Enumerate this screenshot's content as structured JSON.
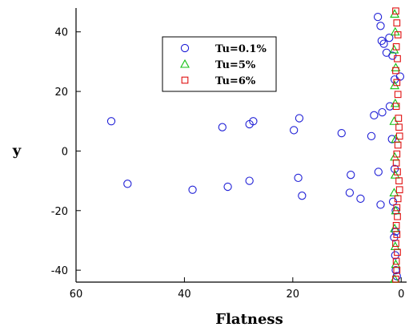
{
  "chart_data": {
    "type": "scatter",
    "title": "",
    "xlabel": "Flatness",
    "ylabel": "y",
    "xlim": [
      60,
      -1
    ],
    "ylim": [
      -44,
      48
    ],
    "x_ticks": [
      60,
      40,
      20,
      0
    ],
    "x_tick_labels": [
      "60",
      "40",
      "20",
      "0"
    ],
    "y_ticks": [
      40,
      20,
      0,
      -20,
      -40
    ],
    "y_tick_labels": [
      "40",
      "20",
      "0",
      "-20",
      "-40"
    ],
    "grid": false,
    "legend_position": "top-center",
    "colors": {
      "Tu=0.1%": "#1f1fd6",
      "Tu=5%": "#11c011",
      "Tu=6%": "#e01010"
    },
    "series": [
      {
        "name": "Tu=0.1%",
        "marker": "circle",
        "points": [
          [
            53.5,
            10
          ],
          [
            50.5,
            -11
          ],
          [
            38.5,
            -13
          ],
          [
            33,
            8
          ],
          [
            32,
            -12
          ],
          [
            28,
            9
          ],
          [
            27.3,
            10
          ],
          [
            28,
            -10
          ],
          [
            19.8,
            7
          ],
          [
            18.8,
            11
          ],
          [
            19,
            -9
          ],
          [
            18.3,
            -15
          ],
          [
            11,
            6
          ],
          [
            9.5,
            -14
          ],
          [
            9.3,
            -8
          ],
          [
            7.5,
            -16
          ],
          [
            5.5,
            5
          ],
          [
            5,
            12
          ],
          [
            4.2,
            -7
          ],
          [
            3.5,
            13
          ],
          [
            3.8,
            -18
          ],
          [
            4.3,
            45
          ],
          [
            3.8,
            42
          ],
          [
            3.6,
            37
          ],
          [
            3.2,
            36
          ],
          [
            2.2,
            38
          ],
          [
            2.7,
            33
          ],
          [
            1.6,
            32
          ],
          [
            2.1,
            15
          ],
          [
            1.7,
            4
          ],
          [
            1.2,
            24
          ],
          [
            0.2,
            25
          ],
          [
            1.2,
            -6
          ],
          [
            1.5,
            -17
          ],
          [
            1.0,
            -20
          ],
          [
            1.3,
            -29
          ],
          [
            1.1,
            -35
          ],
          [
            1.0,
            -40
          ],
          [
            0.8,
            -42
          ],
          [
            1.0,
            -27
          ]
        ]
      },
      {
        "name": "Tu=5%",
        "marker": "triangle",
        "points": [
          [
            1.2,
            46
          ],
          [
            1.1,
            40
          ],
          [
            1.3,
            34
          ],
          [
            1.0,
            28
          ],
          [
            1.2,
            22
          ],
          [
            1.1,
            16
          ],
          [
            1.3,
            10
          ],
          [
            1.0,
            4
          ],
          [
            1.2,
            -2
          ],
          [
            1.1,
            -8
          ],
          [
            1.3,
            -14
          ],
          [
            1.0,
            -20
          ],
          [
            1.2,
            -26
          ],
          [
            1.1,
            -32
          ],
          [
            1.0,
            -38
          ],
          [
            1.2,
            -43
          ]
        ]
      },
      {
        "name": "Tu=6%",
        "marker": "square",
        "points": [
          [
            1.0,
            47
          ],
          [
            0.8,
            43
          ],
          [
            0.6,
            39
          ],
          [
            0.9,
            35
          ],
          [
            0.7,
            31
          ],
          [
            1.0,
            27
          ],
          [
            0.8,
            23
          ],
          [
            0.6,
            19
          ],
          [
            0.9,
            15
          ],
          [
            0.5,
            11
          ],
          [
            0.4,
            8
          ],
          [
            0.3,
            5
          ],
          [
            0.6,
            2
          ],
          [
            0.8,
            -1
          ],
          [
            0.9,
            -4
          ],
          [
            0.7,
            -7
          ],
          [
            0.4,
            -10
          ],
          [
            0.3,
            -13
          ],
          [
            0.6,
            -16
          ],
          [
            0.8,
            -19
          ],
          [
            0.7,
            -22
          ],
          [
            0.9,
            -25
          ],
          [
            0.8,
            -28
          ],
          [
            1.0,
            -31
          ],
          [
            0.7,
            -34
          ],
          [
            0.9,
            -37
          ],
          [
            0.8,
            -40
          ],
          [
            1.0,
            -43
          ]
        ]
      }
    ]
  }
}
